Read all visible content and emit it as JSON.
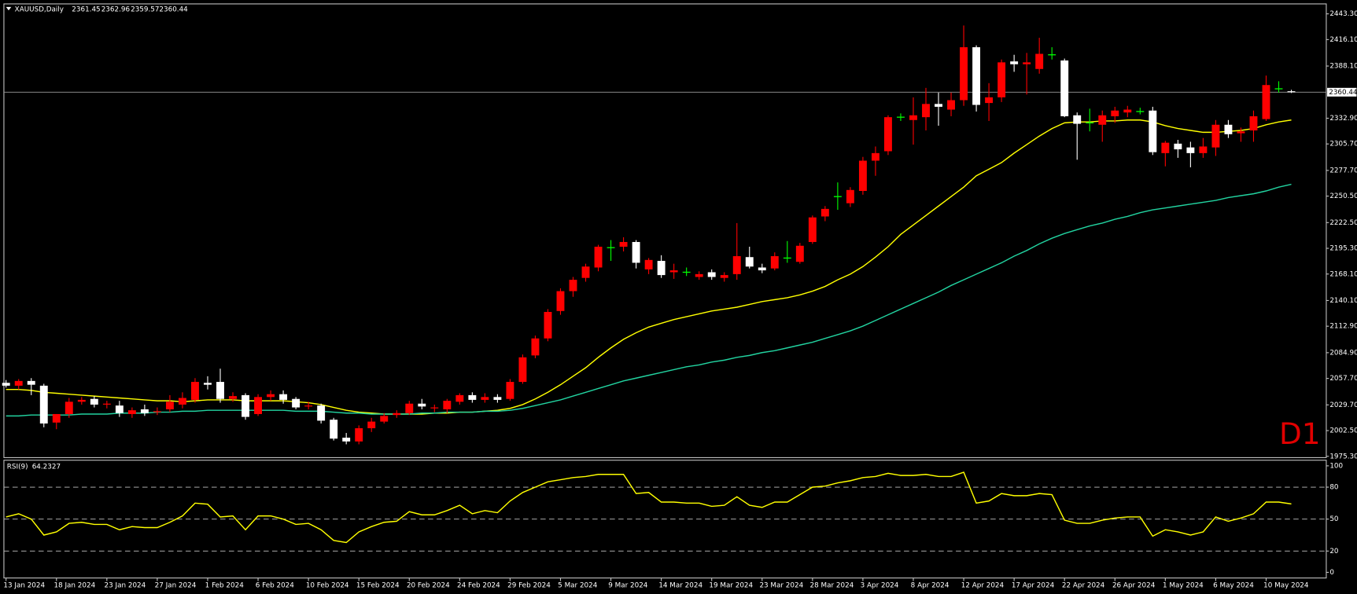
{
  "chart_data": [
    {
      "type": "candlestick",
      "title": "XAUUSD,Daily",
      "timeframe": "D1",
      "categories": [
        "13 Jan 2024",
        null,
        null,
        null,
        "18 Jan 2024",
        null,
        null,
        null,
        "23 Jan 2024",
        null,
        null,
        null,
        "27 Jan 2024",
        null,
        null,
        null,
        "1 Feb 2024",
        null,
        null,
        null,
        "6 Feb 2024",
        null,
        null,
        null,
        "10 Feb 2024",
        null,
        null,
        null,
        "15 Feb 2024",
        null,
        null,
        null,
        "20 Feb 2024",
        null,
        null,
        null,
        "24 Feb 2024",
        null,
        null,
        null,
        "29 Feb 2024",
        null,
        null,
        null,
        "5 Mar 2024",
        null,
        null,
        null,
        "9 Mar 2024",
        null,
        null,
        null,
        "14 Mar 2024",
        null,
        null,
        null,
        "19 Mar 2024",
        null,
        null,
        null,
        "23 Mar 2024",
        null,
        null,
        null,
        "28 Mar 2024",
        null,
        null,
        null,
        "3 Apr 2024",
        null,
        null,
        null,
        "8 Apr 2024",
        null,
        null,
        null,
        "12 Apr 2024",
        null,
        null,
        null,
        "17 Apr 2024",
        null,
        null,
        null,
        "22 Apr 2024",
        null,
        null,
        null,
        "26 Apr 2024",
        null,
        null,
        null,
        "1 May 2024",
        null,
        null,
        null,
        "6 May 2024",
        null,
        null,
        null,
        "10 May 2024",
        null,
        null
      ],
      "open": [
        2053,
        2050,
        2055,
        2050,
        2011,
        2020,
        2033,
        2036,
        2030,
        2029,
        2020,
        2025,
        2022,
        2025,
        2030,
        2035,
        2053,
        2054,
        2036,
        2040,
        2020,
        2038,
        2041,
        2036,
        2028,
        2029,
        2014,
        1995,
        1991,
        2005,
        2012,
        2019,
        2021,
        2031,
        2026,
        2025,
        2033,
        2040,
        2035,
        2038,
        2036,
        2054,
        2082,
        2100,
        2129,
        2150,
        2164,
        2175,
        2196,
        2197,
        2202,
        2173,
        2182,
        2170,
        2170,
        2165,
        2170,
        2164,
        2168,
        2186,
        2175,
        2174,
        2185,
        2181,
        2202,
        2229,
        2250,
        2243,
        2256,
        2288,
        2298,
        2334,
        2331,
        2334,
        2348,
        2342,
        2352,
        2408,
        2349,
        2355,
        2393,
        2390,
        2385,
        2400,
        2394,
        2336,
        2328,
        2326,
        2335,
        2339,
        2340,
        2341,
        2296,
        2306,
        2302,
        2296,
        2302,
        2326,
        2317,
        2320,
        2332,
        2364,
        2361.45
      ],
      "high": [
        2056,
        2057,
        2058,
        2052,
        2020,
        2037,
        2038,
        2039,
        2034,
        2034,
        2027,
        2030,
        2027,
        2040,
        2043,
        2058,
        2060,
        2068,
        2043,
        2042,
        2041,
        2045,
        2045,
        2038,
        2033,
        2031,
        2016,
        2000,
        2008,
        2016,
        2021,
        2024,
        2034,
        2036,
        2030,
        2036,
        2042,
        2043,
        2042,
        2041,
        2057,
        2083,
        2103,
        2131,
        2153,
        2165,
        2179,
        2199,
        2204,
        2207,
        2204,
        2185,
        2188,
        2179,
        2175,
        2171,
        2173,
        2170,
        2222,
        2197,
        2179,
        2191,
        2203,
        2201,
        2230,
        2240,
        2265,
        2260,
        2292,
        2303,
        2336,
        2338,
        2355,
        2365,
        2360,
        2360,
        2431,
        2410,
        2370,
        2395,
        2400,
        2402,
        2418,
        2408,
        2396,
        2339,
        2343,
        2341,
        2345,
        2346,
        2344,
        2345,
        2309,
        2310,
        2308,
        2312,
        2331,
        2331,
        2323,
        2341,
        2378,
        2372,
        2362.96
      ],
      "low": [
        2048,
        2046,
        2040,
        2006,
        2004,
        2016,
        2030,
        2027,
        2026,
        2017,
        2016,
        2018,
        2019,
        2022,
        2026,
        2032,
        2046,
        2032,
        2033,
        2014,
        2018,
        2034,
        2031,
        2025,
        2025,
        2010,
        1992,
        1988,
        1988,
        2001,
        2010,
        2016,
        2019,
        2025,
        2022,
        2021,
        2030,
        2032,
        2032,
        2032,
        2034,
        2052,
        2079,
        2097,
        2125,
        2144,
        2160,
        2171,
        2182,
        2192,
        2174,
        2168,
        2164,
        2163,
        2166,
        2162,
        2162,
        2160,
        2162,
        2174,
        2169,
        2172,
        2180,
        2179,
        2200,
        2224,
        2236,
        2239,
        2252,
        2272,
        2294,
        2330,
        2305,
        2320,
        2325,
        2335,
        2346,
        2340,
        2330,
        2350,
        2382,
        2358,
        2380,
        2395,
        2334,
        2289,
        2319,
        2308,
        2328,
        2334,
        2337,
        2294,
        2282,
        2291,
        2281,
        2291,
        2293,
        2312,
        2308,
        2308,
        2330,
        2360,
        2359.57
      ],
      "close": [
        2050,
        2055,
        2051,
        2010,
        2020,
        2033,
        2035,
        2030,
        2031,
        2021,
        2024,
        2021,
        2023,
        2033,
        2037,
        2054,
        2051,
        2036,
        2039,
        2017,
        2038,
        2041,
        2035,
        2027,
        2029,
        2013,
        1994,
        1991,
        2005,
        2012,
        2018,
        2021,
        2031,
        2028,
        2027,
        2034,
        2040,
        2035,
        2038,
        2035,
        2054,
        2080,
        2100,
        2128,
        2150,
        2162,
        2176,
        2197,
        2196,
        2202,
        2180,
        2183,
        2167,
        2172,
        2170,
        2168,
        2165,
        2167,
        2187,
        2176,
        2172,
        2187,
        2185,
        2198,
        2228,
        2237,
        2250,
        2257,
        2288,
        2296,
        2334,
        2334,
        2336,
        2348,
        2345,
        2352,
        2408,
        2347,
        2355,
        2392,
        2390,
        2392,
        2401,
        2400,
        2335,
        2327,
        2328,
        2336,
        2341,
        2342,
        2340,
        2297,
        2307,
        2300,
        2296,
        2303,
        2326,
        2316,
        2319,
        2335,
        2368,
        2364,
        2360.44
      ],
      "up_color": "#ff0000",
      "down_color": "#ffffff",
      "doji_color": "#00ff00",
      "overlays": [
        {
          "color": "#ffff00",
          "values": [
            2046,
            2046,
            2045,
            2043,
            2042,
            2041,
            2040,
            2039,
            2038,
            2037,
            2036,
            2035,
            2034,
            2034,
            2033,
            2034,
            2035,
            2035,
            2035,
            2034,
            2034,
            2034,
            2034,
            2033,
            2032,
            2030,
            2027,
            2024,
            2022,
            2021,
            2020,
            2020,
            2020,
            2020,
            2021,
            2021,
            2022,
            2022,
            2023,
            2024,
            2026,
            2030,
            2036,
            2043,
            2051,
            2060,
            2069,
            2080,
            2090,
            2099,
            2106,
            2112,
            2116,
            2120,
            2123,
            2126,
            2129,
            2131,
            2133,
            2136,
            2139,
            2141,
            2143,
            2146,
            2150,
            2155,
            2162,
            2168,
            2176,
            2186,
            2197,
            2210,
            2220,
            2230,
            2240,
            2250,
            2260,
            2272,
            2279,
            2286,
            2296,
            2305,
            2314,
            2322,
            2328,
            2329,
            2329,
            2330,
            2330,
            2331,
            2331,
            2329,
            2325,
            2322,
            2320,
            2318,
            2318,
            2319,
            2320,
            2322,
            2326,
            2329,
            2331
          ]
        },
        {
          "color": "#22d3a0",
          "values": [
            2018,
            2018,
            2019,
            2019,
            2019,
            2019,
            2020,
            2020,
            2020,
            2021,
            2021,
            2021,
            2022,
            2022,
            2023,
            2023,
            2024,
            2024,
            2024,
            2024,
            2024,
            2024,
            2024,
            2023,
            2023,
            2023,
            2022,
            2021,
            2021,
            2020,
            2020,
            2020,
            2020,
            2021,
            2021,
            2022,
            2022,
            2022,
            2023,
            2023,
            2024,
            2026,
            2029,
            2032,
            2035,
            2039,
            2043,
            2047,
            2051,
            2055,
            2058,
            2061,
            2064,
            2067,
            2070,
            2072,
            2075,
            2077,
            2080,
            2082,
            2085,
            2087,
            2090,
            2093,
            2096,
            2100,
            2104,
            2108,
            2113,
            2119,
            2125,
            2131,
            2137,
            2143,
            2149,
            2156,
            2162,
            2168,
            2174,
            2180,
            2187,
            2193,
            2200,
            2206,
            2211,
            2215,
            2219,
            2222,
            2226,
            2229,
            2233,
            2236,
            2238,
            2240,
            2242,
            2244,
            2246,
            2249,
            2251,
            2253,
            2256,
            2260,
            2263
          ]
        }
      ],
      "ylim": [
        1974,
        2452
      ],
      "yticks": [
        {
          "value": 2443.3,
          "label": "2443.30"
        },
        {
          "value": 2416.1,
          "label": "2416.10"
        },
        {
          "value": 2388.1,
          "label": "2388.10"
        },
        {
          "value": 2332.9,
          "label": "2332.90"
        },
        {
          "value": 2305.7,
          "label": "2305.70"
        },
        {
          "value": 2277.7,
          "label": "2277.70"
        },
        {
          "value": 2250.5,
          "label": "2250.50"
        },
        {
          "value": 2222.5,
          "label": "2222.50"
        },
        {
          "value": 2195.3,
          "label": "2195.30"
        },
        {
          "value": 2168.1,
          "label": "2168.10"
        },
        {
          "value": 2140.1,
          "label": "2140.10"
        },
        {
          "value": 2112.9,
          "label": "2112.90"
        },
        {
          "value": 2084.9,
          "label": "2084.90"
        },
        {
          "value": 2057.7,
          "label": "2057.70"
        },
        {
          "value": 2029.7,
          "label": "2029.70"
        },
        {
          "value": 2002.5,
          "label": "2002.50"
        },
        {
          "value": 1975.3,
          "label": "1975.30"
        }
      ]
    },
    {
      "type": "line",
      "title": "RSI(9)",
      "color": "#ffff00",
      "values": [
        52,
        55,
        50,
        35,
        38,
        46,
        47,
        45,
        45,
        40,
        43,
        42,
        42,
        47,
        53,
        65,
        64,
        52,
        53,
        40,
        53,
        53,
        50,
        45,
        46,
        40,
        30,
        28,
        38,
        43,
        47,
        48,
        57,
        54,
        54,
        58,
        63,
        55,
        58,
        56,
        67,
        75,
        80,
        85,
        87,
        89,
        90,
        92,
        92,
        92,
        74,
        75,
        66,
        66,
        65,
        65,
        62,
        63,
        71,
        63,
        61,
        66,
        66,
        73,
        80,
        81,
        84,
        86,
        89,
        90,
        93,
        91,
        91,
        92,
        90,
        90,
        94,
        65,
        67,
        74,
        72,
        72,
        74,
        73,
        49,
        46,
        46,
        49,
        51,
        52,
        52,
        34,
        40,
        38,
        35,
        38,
        52,
        48,
        51,
        55,
        66,
        66,
        64.2327
      ],
      "ylim": [
        0,
        100
      ],
      "yticks": [
        100,
        80,
        50,
        20,
        0
      ],
      "levels": [
        80,
        50,
        20
      ]
    }
  ]
}
